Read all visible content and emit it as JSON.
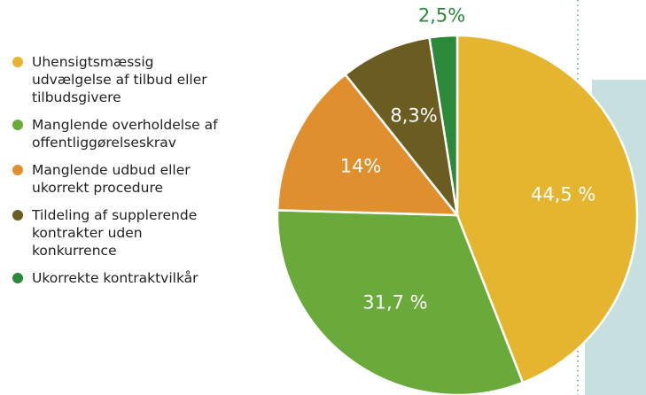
{
  "chart_data": {
    "type": "pie",
    "categories": [
      "Uhensigtsmæssig udvælgelse af tilbud eller tilbudsgivere",
      "Manglende overholdelse af offentliggørelseskrav",
      "Manglende udbud eller ukorrekt procedure",
      "Tildeling af supplerende kontrakter uden konkurrence",
      "Ukorrekte kontraktvilkår"
    ],
    "values": [
      44.5,
      31.7,
      14,
      8.3,
      2.5
    ],
    "value_labels": [
      "44,5 %",
      "31,7 %",
      "14%",
      "8,3%",
      "2,5%"
    ],
    "colors": [
      "#e5b52f",
      "#6aaa3a",
      "#e08f2f",
      "#6b5d22",
      "#2a8a3a"
    ]
  }
}
